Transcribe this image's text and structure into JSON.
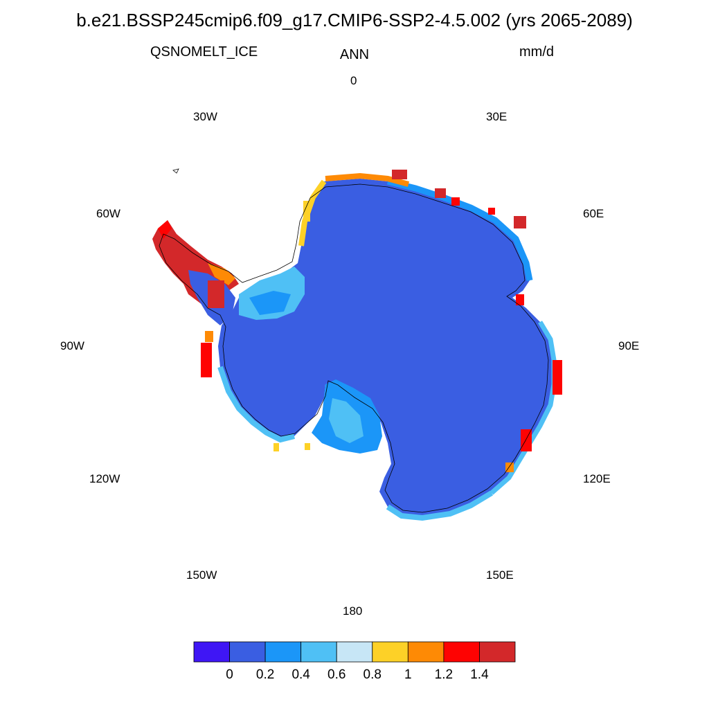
{
  "title": "b.e21.BSSP245cmip6.f09_g17.CMIP6-SSP2-4.5.002 (yrs 2065-2089)",
  "variable": "QSNOMELT_ICE",
  "season": "ANN",
  "units": "mm/d",
  "longitude_labels": [
    {
      "id": "0",
      "text": "0"
    },
    {
      "id": "30E",
      "text": "30E"
    },
    {
      "id": "60E",
      "text": "60E"
    },
    {
      "id": "90E",
      "text": "90E"
    },
    {
      "id": "120E",
      "text": "120E"
    },
    {
      "id": "150E",
      "text": "150E"
    },
    {
      "id": "180",
      "text": "180"
    },
    {
      "id": "150W",
      "text": "150W"
    },
    {
      "id": "120W",
      "text": "120W"
    },
    {
      "id": "90W",
      "text": "90W"
    },
    {
      "id": "60W",
      "text": "60W"
    },
    {
      "id": "30W",
      "text": "30W"
    }
  ],
  "colorbar": {
    "colors": [
      "#3f16f5",
      "#3a5ee2",
      "#1b96f8",
      "#4fc0f5",
      "#c7e6f6",
      "#fdd127",
      "#fe8a05",
      "#fe0302",
      "#d3282a"
    ],
    "labels": [
      "0",
      "0.2",
      "0.4",
      "0.6",
      "0.8",
      "1",
      "1.2",
      "1.4"
    ]
  },
  "legend_colors": {
    "interior": "#3a5ee2",
    "coast_light": "#4fc0f5",
    "coast_pale": "#c7e6f6",
    "melt_yellow": "#fdd127",
    "melt_orange": "#fe8a05",
    "melt_red": "#fe0302",
    "melt_darkred": "#d3282a"
  }
}
